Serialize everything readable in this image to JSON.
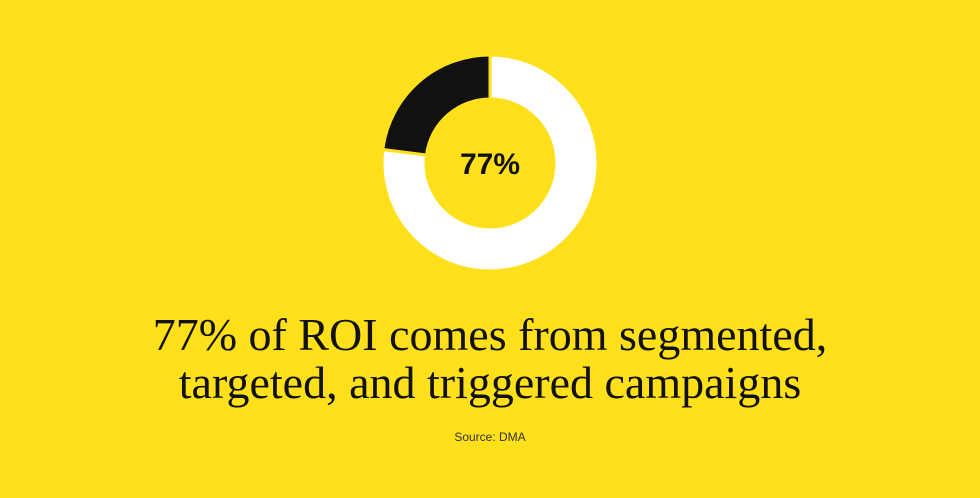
{
  "chart_data": {
    "type": "donut",
    "values": [
      77,
      23
    ],
    "value_labels": [
      "77%",
      null
    ],
    "colors": [
      "#ffffff",
      "#111111"
    ],
    "title": [
      "77% of ROI comes from segmented,",
      "targeted, and triggered campaigns"
    ],
    "source": "Source: DMA"
  }
}
